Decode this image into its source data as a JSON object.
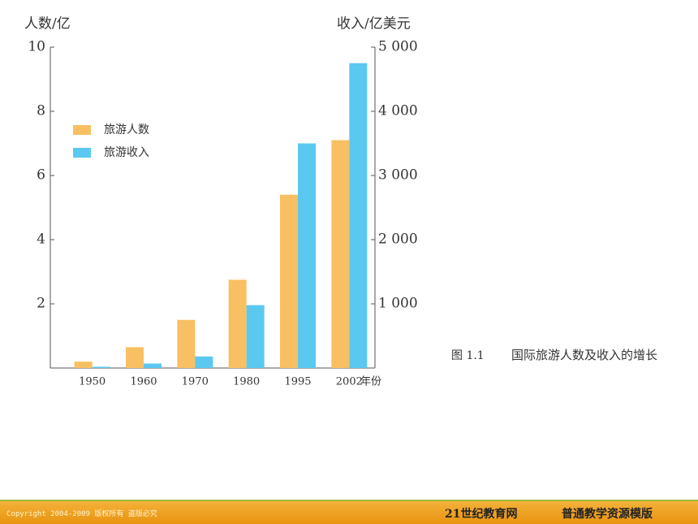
{
  "chart_data": {
    "type": "bar",
    "ylabel": "人数/亿",
    "y2label": "收入/亿美元",
    "xlabel": "年份",
    "categories": [
      "1950",
      "1960",
      "1970",
      "1980",
      "1995",
      "2002"
    ],
    "series": [
      {
        "name": "旅游人数",
        "color": "#f8c062",
        "values": [
          0.2,
          0.65,
          1.5,
          2.75,
          5.4,
          7.1
        ]
      },
      {
        "name": "旅游收入",
        "color": "#5bc8f0",
        "values": [
          20,
          70,
          180,
          980,
          3500,
          4750
        ],
        "axis": "y2"
      }
    ],
    "ylim": [
      0,
      10
    ],
    "yticks": [
      2,
      4,
      6,
      8,
      10
    ],
    "y2lim": [
      0,
      5000
    ],
    "y2ticks": [
      {
        "value": 1000,
        "label": "1 000"
      },
      {
        "value": 2000,
        "label": "2 000"
      },
      {
        "value": 3000,
        "label": "3 000"
      },
      {
        "value": 4000,
        "label": "4 000"
      },
      {
        "value": 5000,
        "label": "5 000"
      }
    ],
    "caption_number": "图 1.1",
    "caption": "国际旅游人数及收入的增长"
  },
  "footer": {
    "copyright": "Copyright 2004-2009 版权所有 盗版必究",
    "site": "21世纪教育网",
    "template": "普通教学资源模版"
  }
}
